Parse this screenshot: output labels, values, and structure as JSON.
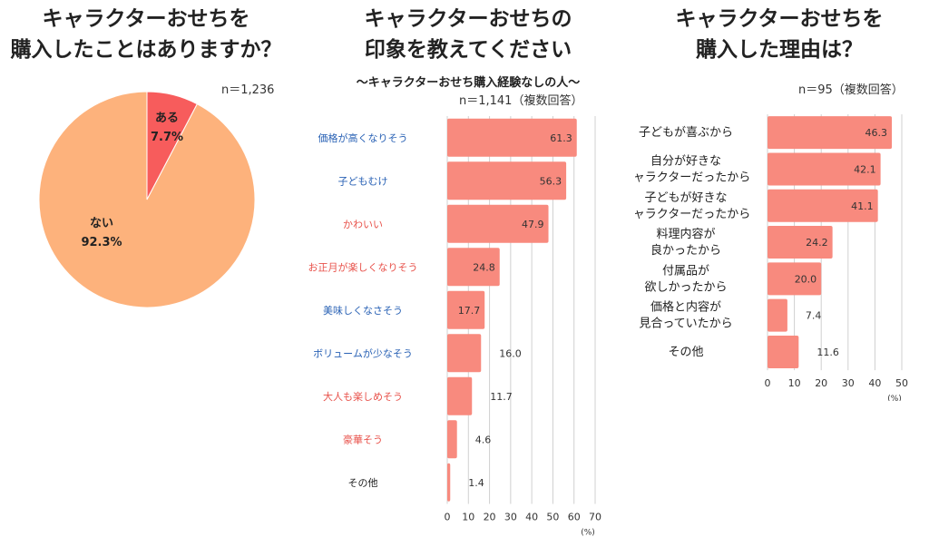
{
  "chart_data": [
    {
      "type": "pie",
      "title_line1": "キャラクターおせちを",
      "title_line2": "購入したことはありますか？",
      "n_label": "n＝1,236",
      "slices": [
        {
          "label": "ある",
          "value_label": "7.7%",
          "value": 7.7,
          "color": "#f75c5c"
        },
        {
          "label": "ない",
          "value_label": "92.3%",
          "value": 92.3,
          "color": "#fdb27c"
        }
      ]
    },
    {
      "type": "bar",
      "orientation": "horizontal",
      "title_line1": "キャラクターおせちの",
      "title_line2": "印象を教えてください",
      "subtitle": "〜キャラクターおせち購入経験なしの人〜",
      "n_label": "n＝1,141（複数回答）",
      "unit_label": "(%)",
      "xlim": [
        0,
        70
      ],
      "ticks": [
        0,
        10,
        20,
        30,
        40,
        50,
        60,
        70
      ],
      "bar_color": "#f88a7e",
      "categories": [
        "価格が高くなりそう",
        "子どもむけ",
        "かわいい",
        "お正月が楽しくなりそう",
        "美味しくなさそう",
        "ボリュームが少なそう",
        "大人も楽しめそう",
        "豪華そう",
        "その他"
      ],
      "values": [
        61.3,
        56.3,
        47.9,
        24.8,
        17.7,
        16.0,
        11.7,
        4.6,
        1.4
      ],
      "value_labels": [
        "61.3",
        "56.3",
        "47.9",
        "24.8",
        "17.7",
        "16.0",
        "11.7",
        "4.6",
        "1.4"
      ],
      "label_colors": [
        "#2a62b5",
        "#2a62b5",
        "#e8524b",
        "#e8524b",
        "#2a62b5",
        "#2a62b5",
        "#e8524b",
        "#e8524b",
        "#222222"
      ]
    },
    {
      "type": "bar",
      "orientation": "horizontal",
      "title_line1": "キャラクターおせちを",
      "title_line2": "購入した理由は？",
      "n_label": "n＝95（複数回答）",
      "unit_label": "(%)",
      "xlim": [
        0,
        50
      ],
      "ticks": [
        0,
        10,
        20,
        30,
        40,
        50
      ],
      "bar_color": "#f88a7e",
      "categories": [
        [
          "子どもが喜ぶから"
        ],
        [
          "自分が好きな",
          "キャラクターだったから"
        ],
        [
          "子どもが好きな",
          "キャラクターだったから"
        ],
        [
          "料理内容が",
          "良かったから"
        ],
        [
          "付属品が",
          "欲しかったから"
        ],
        [
          "価格と内容が",
          "見合っていたから"
        ],
        [
          "その他"
        ]
      ],
      "values": [
        46.3,
        42.1,
        41.1,
        24.2,
        20.0,
        7.4,
        11.6
      ],
      "value_labels": [
        "46.3",
        "42.1",
        "41.1",
        "24.2",
        "20.0",
        "7.4",
        "11.6"
      ]
    }
  ]
}
